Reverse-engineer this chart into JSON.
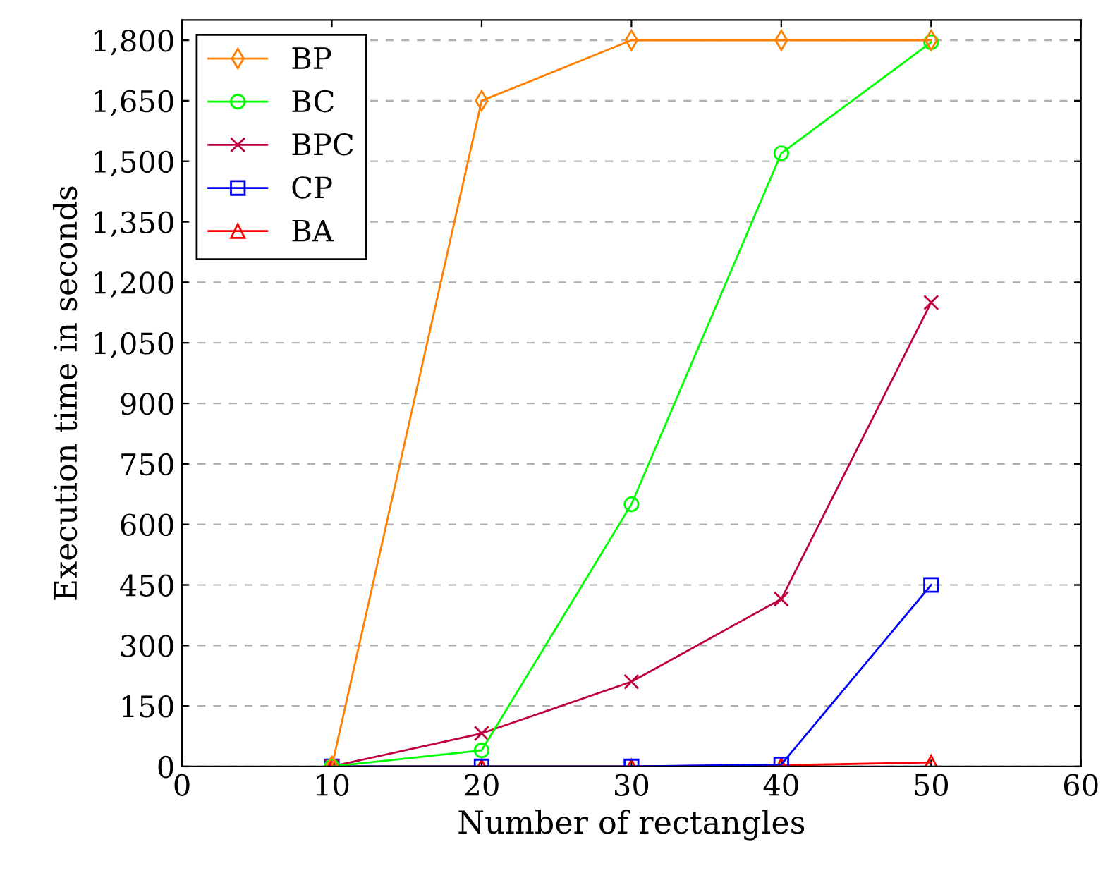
{
  "chart_data": {
    "type": "line",
    "xlabel": "Number of rectangles",
    "ylabel": "Execution time in seconds",
    "x": [
      10,
      20,
      30,
      40,
      50
    ],
    "series": [
      {
        "name": "BP",
        "color": "#ff8000",
        "marker": "diamond",
        "values": [
          0,
          1650,
          1800,
          1800,
          1800
        ]
      },
      {
        "name": "BC",
        "color": "#00ff00",
        "marker": "circle",
        "values": [
          0,
          40,
          650,
          1520,
          1795
        ]
      },
      {
        "name": "BPC",
        "color": "#bf0040",
        "marker": "cross",
        "values": [
          0,
          82,
          210,
          415,
          1150
        ]
      },
      {
        "name": "CP",
        "color": "#0000ff",
        "marker": "square",
        "values": [
          0,
          0,
          0,
          5,
          450
        ]
      },
      {
        "name": "BA",
        "color": "#ff0000",
        "marker": "triangle",
        "values": [
          0,
          0,
          0,
          3,
          10
        ]
      }
    ],
    "xlim": [
      0,
      60
    ],
    "xticks": [
      0,
      10,
      20,
      30,
      40,
      50,
      60
    ],
    "ylim": [
      0,
      1850
    ],
    "yticks": [
      0,
      150,
      300,
      450,
      600,
      750,
      900,
      {
        "value": 1050,
        "label": "1,050"
      },
      {
        "value": 1200,
        "label": "1,200"
      },
      {
        "value": 1350,
        "label": "1,350"
      },
      {
        "value": 1500,
        "label": "1,500"
      },
      {
        "value": 1650,
        "label": "1,650"
      },
      {
        "value": 1800,
        "label": "1,800"
      }
    ],
    "grid": "y",
    "legend": "top left",
    "line_style": "solid"
  }
}
